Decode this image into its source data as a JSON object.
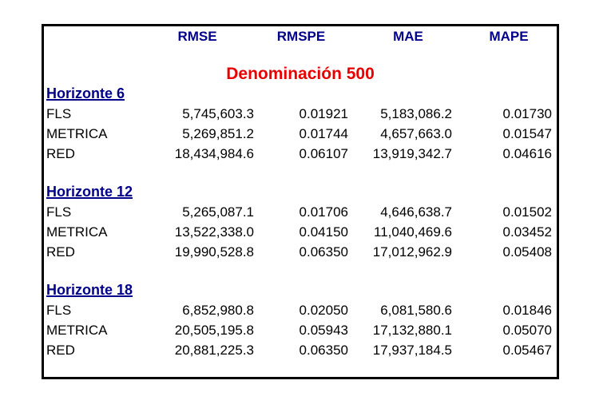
{
  "chart_data": {
    "type": "table",
    "title": "Denominación 500",
    "columns": [
      "",
      "RMSE",
      "RMSPE",
      "MAE",
      "MAPE"
    ],
    "sections": [
      {
        "heading": "Horizonte 6",
        "rows": [
          [
            "FLS",
            "5,745,603.3",
            "0.01921",
            "5,183,086.2",
            "0.01730"
          ],
          [
            "METRICA",
            "5,269,851.2",
            "0.01744",
            "4,657,663.0",
            "0.01547"
          ],
          [
            "RED",
            "18,434,984.6",
            "0.06107",
            "13,919,342.7",
            "0.04616"
          ]
        ]
      },
      {
        "heading": "Horizonte 12",
        "rows": [
          [
            "FLS",
            "5,265,087.1",
            "0.01706",
            "4,646,638.7",
            "0.01502"
          ],
          [
            "METRICA",
            "13,522,338.0",
            "0.04150",
            "11,040,469.6",
            "0.03452"
          ],
          [
            "RED",
            "19,990,528.8",
            "0.06350",
            "17,012,962.9",
            "0.05408"
          ]
        ]
      },
      {
        "heading": "Horizonte 18",
        "rows": [
          [
            "FLS",
            "6,852,980.8",
            "0.02050",
            "6,081,580.6",
            "0.01846"
          ],
          [
            "METRICA",
            "20,505,195.8",
            "0.05943",
            "17,132,880.1",
            "0.05070"
          ],
          [
            "RED",
            "20,881,225.3",
            "0.06350",
            "17,937,184.5",
            "0.05467"
          ]
        ]
      }
    ],
    "layout": {
      "header_color": "#00008b",
      "title_color": "#e80000",
      "text_color": "#000000",
      "border_color": "#000000",
      "number_alignment": "right"
    }
  }
}
